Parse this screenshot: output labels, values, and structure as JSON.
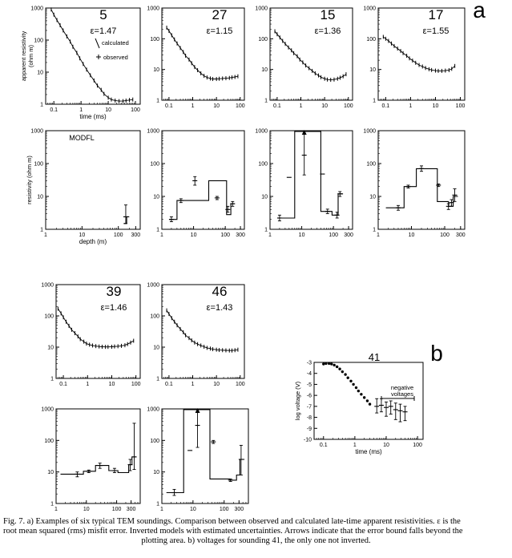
{
  "figure_labels": {
    "a": "a",
    "b": "b"
  },
  "caption": {
    "line1": "Fig. 7. a) Examples of six typical TEM soundings. Comparison between observed and calculated late-time apparent resistivities. ε is the",
    "line2": "root mean squared (rms) misfit error. Inverted models with estimated uncertainties. Arrows indicate that the error bound falls beyond the",
    "line3": "plotting area. b) voltages for sounding 41, the only one not inverted."
  },
  "chart_data": [
    {
      "type": "scatter",
      "panel": "sounding-5",
      "title": "5",
      "epsilon": "ε=1.47",
      "xlabel": "time (ms)",
      "ylabel": "apparent resistivity (ohm m)",
      "xscale": "log",
      "yscale": "log",
      "xlim": [
        0.05,
        150
      ],
      "ylim": [
        1,
        1000
      ],
      "xticks": [
        "0.1",
        "1",
        "10",
        "100"
      ],
      "yticks": [
        "1",
        "10",
        "100",
        "1000"
      ],
      "legend": [
        "calculated",
        "observed"
      ],
      "x": [
        0.08,
        0.1,
        0.13,
        0.17,
        0.22,
        0.3,
        0.4,
        0.5,
        0.7,
        0.9,
        1.2,
        1.6,
        2.2,
        3,
        4,
        5.5,
        7,
        10,
        13,
        18,
        25,
        35,
        45,
        60,
        80
      ],
      "y": [
        900,
        620,
        420,
        290,
        200,
        130,
        90,
        62,
        40,
        27,
        18,
        12,
        8,
        5.5,
        3.8,
        2.8,
        2.1,
        1.6,
        1.4,
        1.3,
        1.25,
        1.25,
        1.3,
        1.35,
        1.4
      ]
    },
    {
      "type": "scatter",
      "panel": "sounding-27",
      "title": "27",
      "epsilon": "ε=1.15",
      "xscale": "log",
      "yscale": "log",
      "xlim": [
        0.05,
        150
      ],
      "ylim": [
        1,
        1000
      ],
      "xticks": [
        "0.1",
        "1",
        "10",
        "100"
      ],
      "yticks": [
        "1",
        "10",
        "100",
        "1000"
      ],
      "x": [
        0.08,
        0.1,
        0.13,
        0.17,
        0.22,
        0.3,
        0.4,
        0.5,
        0.7,
        0.9,
        1.2,
        1.6,
        2.2,
        3,
        4,
        5.5,
        7,
        10,
        13,
        18,
        25,
        35,
        45,
        60,
        80
      ],
      "y": [
        230,
        180,
        130,
        95,
        70,
        50,
        37,
        28,
        21,
        16,
        12,
        9.5,
        7.5,
        6.2,
        5.5,
        5.1,
        4.9,
        4.9,
        5,
        5.1,
        5.2,
        5.3,
        5.5,
        5.7,
        6
      ]
    },
    {
      "type": "scatter",
      "panel": "sounding-15",
      "title": "15",
      "epsilon": "ε=1.36",
      "xscale": "log",
      "yscale": "log",
      "xlim": [
        0.05,
        150
      ],
      "ylim": [
        1,
        1000
      ],
      "xticks": [
        "0.1",
        "1",
        "10",
        "100"
      ],
      "yticks": [
        "1",
        "10",
        "100",
        "1000"
      ],
      "x": [
        0.08,
        0.1,
        0.13,
        0.17,
        0.22,
        0.3,
        0.4,
        0.5,
        0.7,
        0.9,
        1.2,
        1.6,
        2.2,
        3,
        4,
        5.5,
        7,
        10,
        13,
        18,
        25,
        35,
        45,
        60,
        80
      ],
      "y": [
        175,
        140,
        110,
        85,
        68,
        52,
        42,
        34,
        27,
        21,
        17,
        13.5,
        11,
        9,
        7.5,
        6.4,
        5.6,
        5,
        4.7,
        4.6,
        4.7,
        5,
        5.4,
        6,
        7
      ]
    },
    {
      "type": "scatter",
      "panel": "sounding-17",
      "title": "17",
      "epsilon": "ε=1.55",
      "xscale": "log",
      "yscale": "log",
      "xlim": [
        0.05,
        150
      ],
      "ylim": [
        1,
        1000
      ],
      "xticks": [
        "0.1",
        "1",
        "10",
        "100"
      ],
      "yticks": [
        "1",
        "10",
        "100",
        "1000"
      ],
      "x": [
        0.08,
        0.1,
        0.13,
        0.17,
        0.22,
        0.3,
        0.4,
        0.5,
        0.7,
        0.9,
        1.2,
        1.6,
        2.2,
        3,
        4,
        5.5,
        7,
        10,
        13,
        18,
        25,
        35,
        45,
        60
      ],
      "y": [
        115,
        100,
        85,
        70,
        58,
        48,
        40,
        34,
        28,
        23,
        19.5,
        16.5,
        14,
        12.5,
        11.2,
        10.2,
        9.6,
        9.2,
        9,
        9,
        9.2,
        9.5,
        10.5,
        13
      ]
    },
    {
      "type": "line",
      "panel": "model-5",
      "title": "MODFL",
      "xlabel": "depth (m)",
      "ylabel": "resistivity (ohm m)",
      "xscale": "log",
      "yscale": "log",
      "xlim": [
        1,
        400
      ],
      "ylim": [
        1,
        1000
      ],
      "xticks": [
        "1",
        "10",
        "100",
        "300"
      ],
      "yticks": [
        "1",
        "10",
        "100",
        "1000"
      ],
      "step_x": [
        140,
        170,
        200
      ],
      "step_y": [
        1.5,
        2.4
      ],
      "errors": [
        {
          "x": 160,
          "y": 2.4,
          "lo": 1.5,
          "hi": 5.5
        }
      ]
    },
    {
      "type": "line",
      "panel": "model-27",
      "xscale": "log",
      "yscale": "log",
      "xlim": [
        1,
        400
      ],
      "ylim": [
        1,
        1000
      ],
      "xticks": [
        "1",
        "10",
        "100",
        "300"
      ],
      "yticks": [
        "1",
        "10",
        "100",
        "1000"
      ],
      "step_x": [
        1.7,
        3,
        30,
        110,
        150,
        200
      ],
      "step_y": [
        2,
        7.5,
        30,
        2.8,
        6,
        6
      ],
      "errors": [
        {
          "x": 2,
          "y": 2,
          "lo": 1.7,
          "hi": 2.4
        },
        {
          "x": 4,
          "y": 7.5,
          "lo": 6.5,
          "hi": 8.5
        },
        {
          "x": 11,
          "y": 30,
          "lo": 22,
          "hi": 40
        },
        {
          "x": 55,
          "y": 9,
          "lo": 8,
          "hi": 10
        },
        {
          "x": 120,
          "y": 4,
          "lo": 3.3,
          "hi": 5
        },
        {
          "x": 170,
          "y": 6,
          "lo": 5,
          "hi": 7
        }
      ]
    },
    {
      "type": "line",
      "panel": "model-15",
      "xscale": "log",
      "yscale": "log",
      "xlim": [
        1,
        400
      ],
      "ylim": [
        1,
        1000
      ],
      "xticks": [
        "1",
        "10",
        "100",
        "300"
      ],
      "yticks": [
        "1",
        "10",
        "100",
        "1000"
      ],
      "step_x": [
        1.7,
        6,
        40,
        90,
        140,
        200
      ],
      "step_y": [
        2.2,
        950,
        3.5,
        2.7,
        12,
        12
      ],
      "errors": [
        {
          "x": 2,
          "y": 2.2,
          "lo": 1.8,
          "hi": 2.7
        },
        {
          "x": 4,
          "y": 38,
          "lo": 38,
          "hi": 38
        },
        {
          "x": 12,
          "y": 180,
          "lo": 45,
          "hi": 1000,
          "arrow": true
        },
        {
          "x": 45,
          "y": 48,
          "lo": 48,
          "hi": 48
        },
        {
          "x": 65,
          "y": 3.5,
          "lo": 3,
          "hi": 4.1
        },
        {
          "x": 130,
          "y": 2.7,
          "lo": 2.2,
          "hi": 3.3
        },
        {
          "x": 160,
          "y": 12,
          "lo": 10,
          "hi": 14
        }
      ]
    },
    {
      "type": "line",
      "panel": "model-17",
      "xscale": "log",
      "yscale": "log",
      "xlim": [
        1,
        400
      ],
      "ylim": [
        1,
        1000
      ],
      "xticks": [
        "1",
        "10",
        "100",
        "300"
      ],
      "yticks": [
        "1",
        "10",
        "100",
        "1000"
      ],
      "step_x": [
        1.7,
        6,
        14,
        60,
        130,
        180,
        250
      ],
      "step_y": [
        4.5,
        20,
        70,
        7,
        5,
        10,
        10
      ],
      "errors": [
        {
          "x": 4,
          "y": 4.5,
          "lo": 3.8,
          "hi": 5.3
        },
        {
          "x": 8,
          "y": 20,
          "lo": 18,
          "hi": 22
        },
        {
          "x": 20,
          "y": 70,
          "lo": 58,
          "hi": 85
        },
        {
          "x": 65,
          "y": 22,
          "lo": 20,
          "hi": 24
        },
        {
          "x": 130,
          "y": 5,
          "lo": 4,
          "hi": 6
        },
        {
          "x": 160,
          "y": 6.5,
          "lo": 5,
          "hi": 8
        },
        {
          "x": 200,
          "y": 11,
          "lo": 7,
          "hi": 17
        }
      ]
    },
    {
      "type": "scatter",
      "panel": "sounding-39",
      "title": "39",
      "epsilon": "ε=1.46",
      "xscale": "log",
      "yscale": "log",
      "xlim": [
        0.05,
        150
      ],
      "ylim": [
        1,
        1000
      ],
      "xticks": [
        "0.1",
        "1",
        "10",
        "100"
      ],
      "yticks": [
        "1",
        "10",
        "100",
        "1000"
      ],
      "x": [
        0.06,
        0.08,
        0.1,
        0.13,
        0.17,
        0.22,
        0.3,
        0.4,
        0.5,
        0.7,
        0.9,
        1.2,
        1.6,
        2.2,
        3,
        4,
        5.5,
        7,
        10,
        13,
        18,
        25,
        35,
        45,
        60,
        80
      ],
      "y": [
        170,
        120,
        90,
        65,
        48,
        36,
        28,
        22,
        18,
        15,
        13,
        12,
        11.3,
        10.8,
        10.5,
        10.3,
        10.2,
        10.2,
        10.3,
        10.5,
        10.7,
        11,
        11.5,
        12.5,
        14,
        16
      ]
    },
    {
      "type": "scatter",
      "panel": "sounding-46",
      "title": "46",
      "epsilon": "ε=1.43",
      "xscale": "log",
      "yscale": "log",
      "xlim": [
        0.05,
        150
      ],
      "ylim": [
        1,
        1000
      ],
      "xticks": [
        "0.1",
        "1",
        "10",
        "100"
      ],
      "yticks": [
        "1",
        "10",
        "100",
        "1000"
      ],
      "x": [
        0.08,
        0.1,
        0.13,
        0.17,
        0.22,
        0.3,
        0.4,
        0.5,
        0.7,
        0.9,
        1.2,
        1.6,
        2.2,
        3,
        4,
        5.5,
        7,
        10,
        13,
        18,
        25,
        35,
        45,
        60,
        80
      ],
      "y": [
        150,
        115,
        85,
        65,
        50,
        38,
        30,
        24,
        19.5,
        16.5,
        14,
        12.5,
        11.3,
        10.3,
        9.5,
        9,
        8.6,
        8.3,
        8.1,
        8,
        7.9,
        7.8,
        7.8,
        8,
        8.3
      ]
    },
    {
      "type": "line",
      "panel": "model-39",
      "xscale": "log",
      "yscale": "log",
      "xlim": [
        1,
        600
      ],
      "ylim": [
        1,
        1000
      ],
      "xticks": [
        "1",
        "10",
        "100",
        "300"
      ],
      "yticks": [
        "1",
        "10",
        "100",
        "1000"
      ],
      "step_x": [
        1.4,
        8,
        20,
        55,
        110,
        250,
        320,
        450
      ],
      "step_y": [
        8.5,
        10.5,
        16,
        11,
        9.5,
        17,
        30,
        30
      ],
      "errors": [
        {
          "x": 5,
          "y": 8.5,
          "lo": 7,
          "hi": 10
        },
        {
          "x": 12,
          "y": 10.5,
          "lo": 9.5,
          "hi": 11.5
        },
        {
          "x": 28,
          "y": 16,
          "lo": 13,
          "hi": 19
        },
        {
          "x": 85,
          "y": 11,
          "lo": 9.5,
          "hi": 13
        },
        {
          "x": 280,
          "y": 17,
          "lo": 11,
          "hi": 25
        },
        {
          "x": 380,
          "y": 30,
          "lo": 12,
          "hi": 350
        }
      ]
    },
    {
      "type": "line",
      "panel": "model-46",
      "xscale": "log",
      "yscale": "log",
      "xlim": [
        1,
        600
      ],
      "ylim": [
        1,
        1000
      ],
      "xticks": [
        "1",
        "10",
        "100",
        "300"
      ],
      "yticks": [
        "1",
        "10",
        "100",
        "1000"
      ],
      "step_x": [
        1.4,
        5,
        35,
        150,
        250,
        320,
        450
      ],
      "step_y": [
        2.2,
        950,
        6,
        5.5,
        8,
        25,
        25
      ],
      "errors": [
        {
          "x": 2.5,
          "y": 2.2,
          "lo": 1.8,
          "hi": 2.8
        },
        {
          "x": 8,
          "y": 48,
          "lo": 48,
          "hi": 48
        },
        {
          "x": 14,
          "y": 300,
          "lo": 60,
          "hi": 1000,
          "arrow": true
        },
        {
          "x": 45,
          "y": 90,
          "lo": 80,
          "hi": 100
        },
        {
          "x": 160,
          "y": 5.5,
          "lo": 5,
          "hi": 6
        },
        {
          "x": 350,
          "y": 25,
          "lo": 8,
          "hi": 70
        }
      ]
    },
    {
      "type": "scatter",
      "panel": "voltage-41",
      "title": "41",
      "xlabel": "time (ms)",
      "ylabel": "log voltage (V)",
      "annotation": "negative voltages",
      "xscale": "log",
      "xlim": [
        0.05,
        150
      ],
      "ylim": [
        -10,
        -3
      ],
      "xticks": [
        "0.1",
        "1",
        "10",
        "100"
      ],
      "yticks": [
        "-3",
        "-4",
        "-5",
        "-6",
        "-7",
        "-8",
        "-9",
        "-10"
      ],
      "x": [
        0.1,
        0.12,
        0.15,
        0.18,
        0.22,
        0.27,
        0.33,
        0.4,
        0.5,
        0.6,
        0.75,
        0.9,
        1.1,
        1.3,
        1.6,
        2,
        2.5,
        3
      ],
      "y": [
        -3.15,
        -3.1,
        -3.1,
        -3.15,
        -3.25,
        -3.4,
        -3.6,
        -3.85,
        -4.1,
        -4.4,
        -4.7,
        -5,
        -5.3,
        -5.6,
        -5.9,
        -6.2,
        -6.5,
        -6.8
      ],
      "errors": [
        {
          "x": 5,
          "y": -7,
          "lo": -7.6,
          "hi": -6.3
        },
        {
          "x": 7,
          "y": -6.9,
          "lo": -7.5,
          "hi": -6.3
        },
        {
          "x": 10,
          "y": -7.1,
          "lo": -7.9,
          "hi": -6.6
        },
        {
          "x": 14,
          "y": -7,
          "lo": -7.7,
          "hi": -6.5
        },
        {
          "x": 20,
          "y": -7.3,
          "lo": -8.2,
          "hi": -6.7
        },
        {
          "x": 28,
          "y": -7.4,
          "lo": -8.4,
          "hi": -6.8
        },
        {
          "x": 40,
          "y": -7.5,
          "lo": -8.3,
          "hi": -7
        }
      ]
    }
  ]
}
